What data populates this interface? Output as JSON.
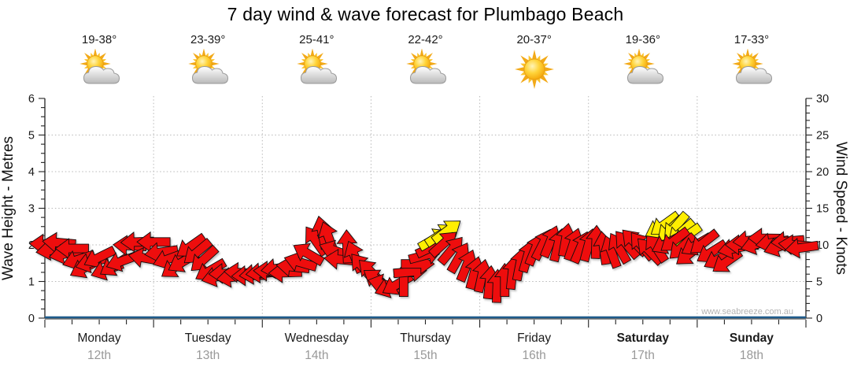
{
  "page": {
    "title": "7 day wind & wave forecast for Plumbago Beach",
    "watermark": "www.seabreeze.com.au"
  },
  "chart_data": {
    "type": "wind_arrow_timeseries",
    "title": "7 day wind & wave forecast for Plumbago Beach",
    "days": [
      {
        "name": "Monday",
        "date": "12th",
        "temp_range": "19-38°",
        "icon": "partly-cloudy-icon",
        "weekend": false
      },
      {
        "name": "Tuesday",
        "date": "13th",
        "temp_range": "23-39°",
        "icon": "partly-cloudy-icon",
        "weekend": false
      },
      {
        "name": "Wednesday",
        "date": "14th",
        "temp_range": "25-41°",
        "icon": "partly-cloudy-icon",
        "weekend": false
      },
      {
        "name": "Thursday",
        "date": "15th",
        "temp_range": "22-42°",
        "icon": "partly-cloudy-icon",
        "weekend": false
      },
      {
        "name": "Friday",
        "date": "16th",
        "temp_range": "20-37°",
        "icon": "sunny-icon",
        "weekend": false
      },
      {
        "name": "Saturday",
        "date": "17th",
        "temp_range": "19-36°",
        "icon": "partly-cloudy-icon",
        "weekend": true
      },
      {
        "name": "Sunday",
        "date": "18th",
        "temp_range": "17-33°",
        "icon": "partly-cloudy-icon",
        "weekend": true
      }
    ],
    "left_axis": {
      "label": "Wave Height - Metres",
      "min": 0,
      "max": 6,
      "major_ticks": [
        0,
        1,
        2,
        3,
        4,
        5,
        6
      ],
      "minor_step": 0.25
    },
    "right_axis": {
      "label": "Wind Speed - Knots",
      "min": 0,
      "max": 30,
      "major_ticks": [
        0,
        5,
        10,
        15,
        20,
        25,
        30
      ],
      "minor_step": 1
    },
    "x_axis": {
      "minor_step_days": 0.25,
      "vertical_gridlines_at_day_boundaries": true,
      "horizontal_gridlines_at_knots": [
        5,
        10,
        15,
        20,
        25
      ]
    },
    "wave_height_series": {
      "value_m": 0,
      "note": "flat line along zero baseline",
      "color": "#1f5c8c"
    },
    "watermark": "www.seabreeze.com.au",
    "arrows_format": "[day_offset_0_to_7, wind_speed_knots, direction_deg_clockwise_from_pointing_right, color r|y]",
    "arrows": [
      [
        0.01,
        10.1,
        182,
        "r"
      ],
      [
        0.07,
        9.3,
        172,
        "r"
      ],
      [
        0.13,
        10.3,
        185,
        "r"
      ],
      [
        0.19,
        8.8,
        168,
        "r"
      ],
      [
        0.25,
        9.5,
        180,
        "r"
      ],
      [
        0.31,
        8.0,
        162,
        "r"
      ],
      [
        0.37,
        6.9,
        152,
        "r"
      ],
      [
        0.43,
        7.6,
        164,
        "r"
      ],
      [
        0.5,
        8.3,
        154,
        "r"
      ],
      [
        0.57,
        6.6,
        160,
        "r"
      ],
      [
        0.64,
        7.2,
        148,
        "r"
      ],
      [
        0.71,
        7.8,
        160,
        "r"
      ],
      [
        0.78,
        9.9,
        183,
        "r"
      ],
      [
        0.85,
        10.4,
        178,
        "r"
      ],
      [
        0.92,
        8.2,
        190,
        "r"
      ],
      [
        1.0,
        10.4,
        180,
        "r"
      ],
      [
        1.07,
        9.0,
        172,
        "r"
      ],
      [
        1.14,
        8.1,
        160,
        "r"
      ],
      [
        1.2,
        7.0,
        145,
        "r"
      ],
      [
        1.27,
        7.7,
        150,
        "r"
      ],
      [
        1.34,
        9.8,
        145,
        "r"
      ],
      [
        1.4,
        9.0,
        140,
        "r"
      ],
      [
        1.46,
        8.0,
        138,
        "r"
      ],
      [
        1.52,
        6.5,
        150,
        "r"
      ],
      [
        1.59,
        5.7,
        165,
        "r"
      ],
      [
        1.66,
        6.1,
        178,
        "r"
      ],
      [
        1.73,
        5.6,
        172,
        "r"
      ],
      [
        1.8,
        6.2,
        184,
        "r"
      ],
      [
        1.87,
        5.8,
        178,
        "r"
      ],
      [
        1.94,
        6.0,
        174,
        "r"
      ],
      [
        2.0,
        6.2,
        174,
        "r"
      ],
      [
        2.07,
        6.4,
        182,
        "r"
      ],
      [
        2.14,
        6.8,
        172,
        "r"
      ],
      [
        2.21,
        6.2,
        178,
        "r"
      ],
      [
        2.28,
        7.0,
        186,
        "r"
      ],
      [
        2.35,
        7.6,
        196,
        "r"
      ],
      [
        2.42,
        8.8,
        210,
        "r"
      ],
      [
        2.49,
        10.6,
        235,
        "r"
      ],
      [
        2.55,
        11.7,
        258,
        "r"
      ],
      [
        2.61,
        11.0,
        250,
        "r"
      ],
      [
        2.67,
        9.2,
        200,
        "r"
      ],
      [
        2.72,
        8.0,
        185,
        "r"
      ],
      [
        2.78,
        9.8,
        268,
        "r"
      ],
      [
        2.85,
        8.4,
        248,
        "r"
      ],
      [
        2.92,
        7.0,
        230,
        "r"
      ],
      [
        3.0,
        6.3,
        225,
        "r"
      ],
      [
        3.06,
        5.2,
        215,
        "r"
      ],
      [
        3.12,
        4.6,
        195,
        "r"
      ],
      [
        3.18,
        4.2,
        160,
        "r"
      ],
      [
        3.24,
        4.6,
        150,
        "r"
      ],
      [
        3.3,
        5.2,
        270,
        "r"
      ],
      [
        3.36,
        6.3,
        355,
        "r"
      ],
      [
        3.43,
        7.4,
        0,
        "r"
      ],
      [
        3.5,
        8.6,
        345,
        "r"
      ],
      [
        3.56,
        9.7,
        335,
        "r"
      ],
      [
        3.58,
        10.8,
        330,
        "y"
      ],
      [
        3.64,
        11.4,
        327,
        "y"
      ],
      [
        3.7,
        11.9,
        323,
        "y"
      ],
      [
        3.67,
        10.2,
        318,
        "r"
      ],
      [
        3.74,
        9.3,
        310,
        "r"
      ],
      [
        3.81,
        8.3,
        300,
        "r"
      ],
      [
        3.88,
        7.2,
        292,
        "r"
      ],
      [
        3.95,
        6.2,
        285,
        "r"
      ],
      [
        4.02,
        5.8,
        282,
        "r"
      ],
      [
        4.09,
        4.9,
        276,
        "r"
      ],
      [
        4.16,
        4.4,
        272,
        "r"
      ],
      [
        4.23,
        5.2,
        270,
        "r"
      ],
      [
        4.3,
        6.2,
        276,
        "r"
      ],
      [
        4.37,
        7.4,
        281,
        "r"
      ],
      [
        4.44,
        8.5,
        286,
        "r"
      ],
      [
        4.51,
        9.4,
        292,
        "r"
      ],
      [
        4.58,
        10.1,
        297,
        "r"
      ],
      [
        4.65,
        10.5,
        292,
        "r"
      ],
      [
        4.72,
        10.0,
        284,
        "r"
      ],
      [
        4.79,
        10.7,
        280,
        "r"
      ],
      [
        4.86,
        10.1,
        288,
        "r"
      ],
      [
        4.93,
        9.7,
        293,
        "r"
      ],
      [
        5.0,
        10.0,
        285,
        "r"
      ],
      [
        5.07,
        10.4,
        272,
        "r"
      ],
      [
        5.14,
        9.6,
        262,
        "r"
      ],
      [
        5.21,
        9.1,
        250,
        "r"
      ],
      [
        5.28,
        9.6,
        240,
        "r"
      ],
      [
        5.35,
        10.1,
        230,
        "r"
      ],
      [
        5.42,
        10.4,
        226,
        "r"
      ],
      [
        5.49,
        9.9,
        231,
        "r"
      ],
      [
        5.56,
        9.2,
        226,
        "r"
      ],
      [
        5.62,
        9.7,
        237,
        "r"
      ],
      [
        5.66,
        12.3,
        152,
        "y"
      ],
      [
        5.7,
        12.8,
        144,
        "y"
      ],
      [
        5.75,
        12.1,
        137,
        "y"
      ],
      [
        5.8,
        12.5,
        131,
        "y"
      ],
      [
        5.85,
        11.7,
        139,
        "y"
      ],
      [
        5.9,
        11.2,
        145,
        "y"
      ],
      [
        5.72,
        10.2,
        152,
        "r"
      ],
      [
        5.79,
        10.6,
        143,
        "r"
      ],
      [
        5.86,
        9.7,
        137,
        "r"
      ],
      [
        5.93,
        8.8,
        142,
        "r"
      ],
      [
        5.99,
        10.0,
        150,
        "r"
      ],
      [
        6.06,
        10.3,
        142,
        "r"
      ],
      [
        6.13,
        9.0,
        148,
        "r"
      ],
      [
        6.2,
        8.1,
        152,
        "r"
      ],
      [
        6.27,
        7.7,
        145,
        "r"
      ],
      [
        6.34,
        9.5,
        168,
        "r"
      ],
      [
        6.41,
        10.0,
        180,
        "r"
      ],
      [
        6.48,
        10.6,
        174,
        "r"
      ],
      [
        6.55,
        10.1,
        164,
        "r"
      ],
      [
        6.62,
        10.9,
        181,
        "r"
      ],
      [
        6.69,
        10.3,
        171,
        "r"
      ],
      [
        6.76,
        9.8,
        161,
        "r"
      ],
      [
        6.83,
        10.5,
        175,
        "r"
      ],
      [
        6.9,
        10.0,
        185,
        "r"
      ],
      [
        6.96,
        9.6,
        172,
        "r"
      ]
    ],
    "colors": {
      "arrow_red": "#ee0808",
      "arrow_yellow": "#ffee00",
      "arrow_outline": "#111111",
      "grid": "#b8b8b8",
      "axis": "#222222",
      "day_text": "#1a1a1a",
      "date_text": "#999999",
      "watermark": "#b3b3b3",
      "wave_line": "#1f5c8c"
    }
  }
}
